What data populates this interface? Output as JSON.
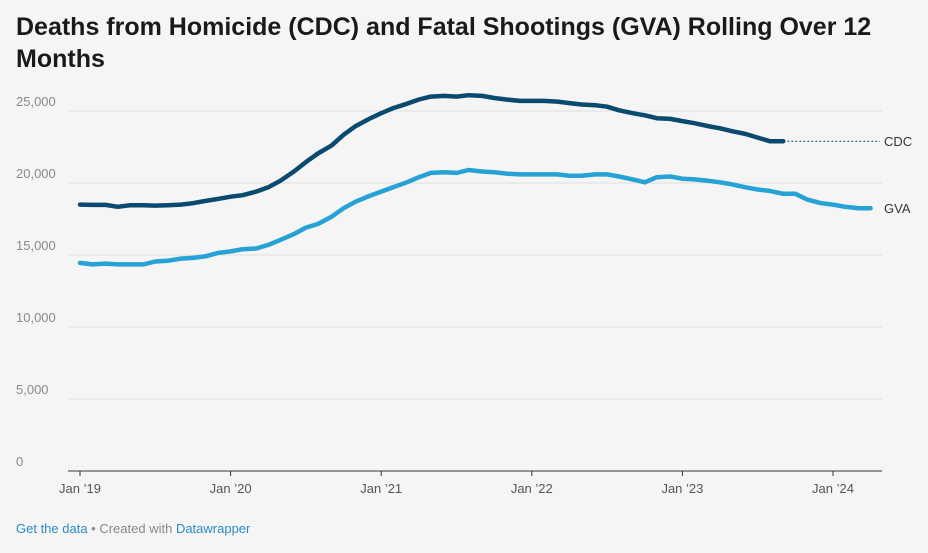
{
  "chart_data": {
    "type": "line",
    "title": "Deaths from Homicide (CDC) and Fatal Shootings (GVA) Rolling Over 12 Months",
    "xlabel": "",
    "ylabel": "",
    "ylim": [
      0,
      25000
    ],
    "y_ticks": [
      0,
      5000,
      10000,
      15000,
      20000,
      25000
    ],
    "y_tick_labels": [
      "0",
      "5,000",
      "10,000",
      "15,000",
      "20,000",
      "25,000"
    ],
    "x_ticks": [
      2019,
      2020,
      2021,
      2022,
      2023,
      2024
    ],
    "x_tick_labels": [
      "Jan ’19",
      "Jan ’20",
      "Jan ’21",
      "Jan ’22",
      "Jan ’23",
      "Jan ’24"
    ],
    "grid": true,
    "legend": "direct labels at line ends",
    "series": [
      {
        "name": "CDC",
        "color": "#0b4a6f",
        "x": [
          2019.0,
          2019.08,
          2019.17,
          2019.25,
          2019.33,
          2019.42,
          2019.5,
          2019.58,
          2019.67,
          2019.75,
          2019.83,
          2019.92,
          2020.0,
          2020.08,
          2020.17,
          2020.25,
          2020.33,
          2020.42,
          2020.5,
          2020.58,
          2020.67,
          2020.75,
          2020.83,
          2020.92,
          2021.0,
          2021.08,
          2021.17,
          2021.25,
          2021.33,
          2021.42,
          2021.5,
          2021.58,
          2021.67,
          2021.75,
          2021.83,
          2021.92,
          2022.0,
          2022.08,
          2022.17,
          2022.25,
          2022.33,
          2022.42,
          2022.5,
          2022.58,
          2022.67,
          2022.75,
          2022.83,
          2022.92,
          2023.0,
          2023.08,
          2023.17,
          2023.25,
          2023.33,
          2023.42,
          2023.5,
          2023.58,
          2023.67
        ],
        "values": [
          18500,
          18480,
          18480,
          18350,
          18450,
          18450,
          18430,
          18450,
          18500,
          18600,
          18750,
          18900,
          19050,
          19150,
          19400,
          19700,
          20150,
          20800,
          21450,
          22050,
          22600,
          23350,
          23950,
          24450,
          24850,
          25200,
          25500,
          25800,
          26000,
          26050,
          26000,
          26100,
          26050,
          25900,
          25800,
          25700,
          25700,
          25700,
          25650,
          25550,
          25450,
          25400,
          25300,
          25050,
          24850,
          24700,
          24500,
          24450,
          24300,
          24150,
          23950,
          23800,
          23600,
          23400,
          23150,
          22900,
          22900
        ]
      },
      {
        "name": "GVA",
        "color": "#26a2d4",
        "x": [
          2019.0,
          2019.08,
          2019.17,
          2019.25,
          2019.33,
          2019.42,
          2019.5,
          2019.58,
          2019.67,
          2019.75,
          2019.83,
          2019.92,
          2020.0,
          2020.08,
          2020.17,
          2020.25,
          2020.33,
          2020.42,
          2020.5,
          2020.58,
          2020.67,
          2020.75,
          2020.83,
          2020.92,
          2021.0,
          2021.08,
          2021.17,
          2021.25,
          2021.33,
          2021.42,
          2021.5,
          2021.58,
          2021.67,
          2021.75,
          2021.83,
          2021.92,
          2022.0,
          2022.08,
          2022.17,
          2022.25,
          2022.33,
          2022.42,
          2022.5,
          2022.58,
          2022.67,
          2022.75,
          2022.83,
          2022.92,
          2023.0,
          2023.08,
          2023.17,
          2023.25,
          2023.33,
          2023.42,
          2023.5,
          2023.58,
          2023.67,
          2023.75,
          2023.83,
          2023.92,
          2024.0,
          2024.08,
          2024.17,
          2024.25
        ],
        "values": [
          14450,
          14350,
          14400,
          14350,
          14350,
          14350,
          14550,
          14600,
          14750,
          14800,
          14900,
          15150,
          15250,
          15400,
          15450,
          15700,
          16050,
          16450,
          16900,
          17150,
          17650,
          18250,
          18700,
          19100,
          19400,
          19700,
          20050,
          20400,
          20700,
          20750,
          20700,
          20900,
          20800,
          20750,
          20650,
          20600,
          20600,
          20600,
          20600,
          20500,
          20500,
          20600,
          20600,
          20450,
          20250,
          20050,
          20400,
          20450,
          20300,
          20250,
          20150,
          20050,
          19900,
          19700,
          19550,
          19450,
          19250,
          19250,
          18850,
          18600,
          18500,
          18350,
          18250,
          18250
        ]
      }
    ]
  },
  "footer": {
    "get_data": "Get the data",
    "separator": " • Created with ",
    "tool": "Datawrapper"
  }
}
